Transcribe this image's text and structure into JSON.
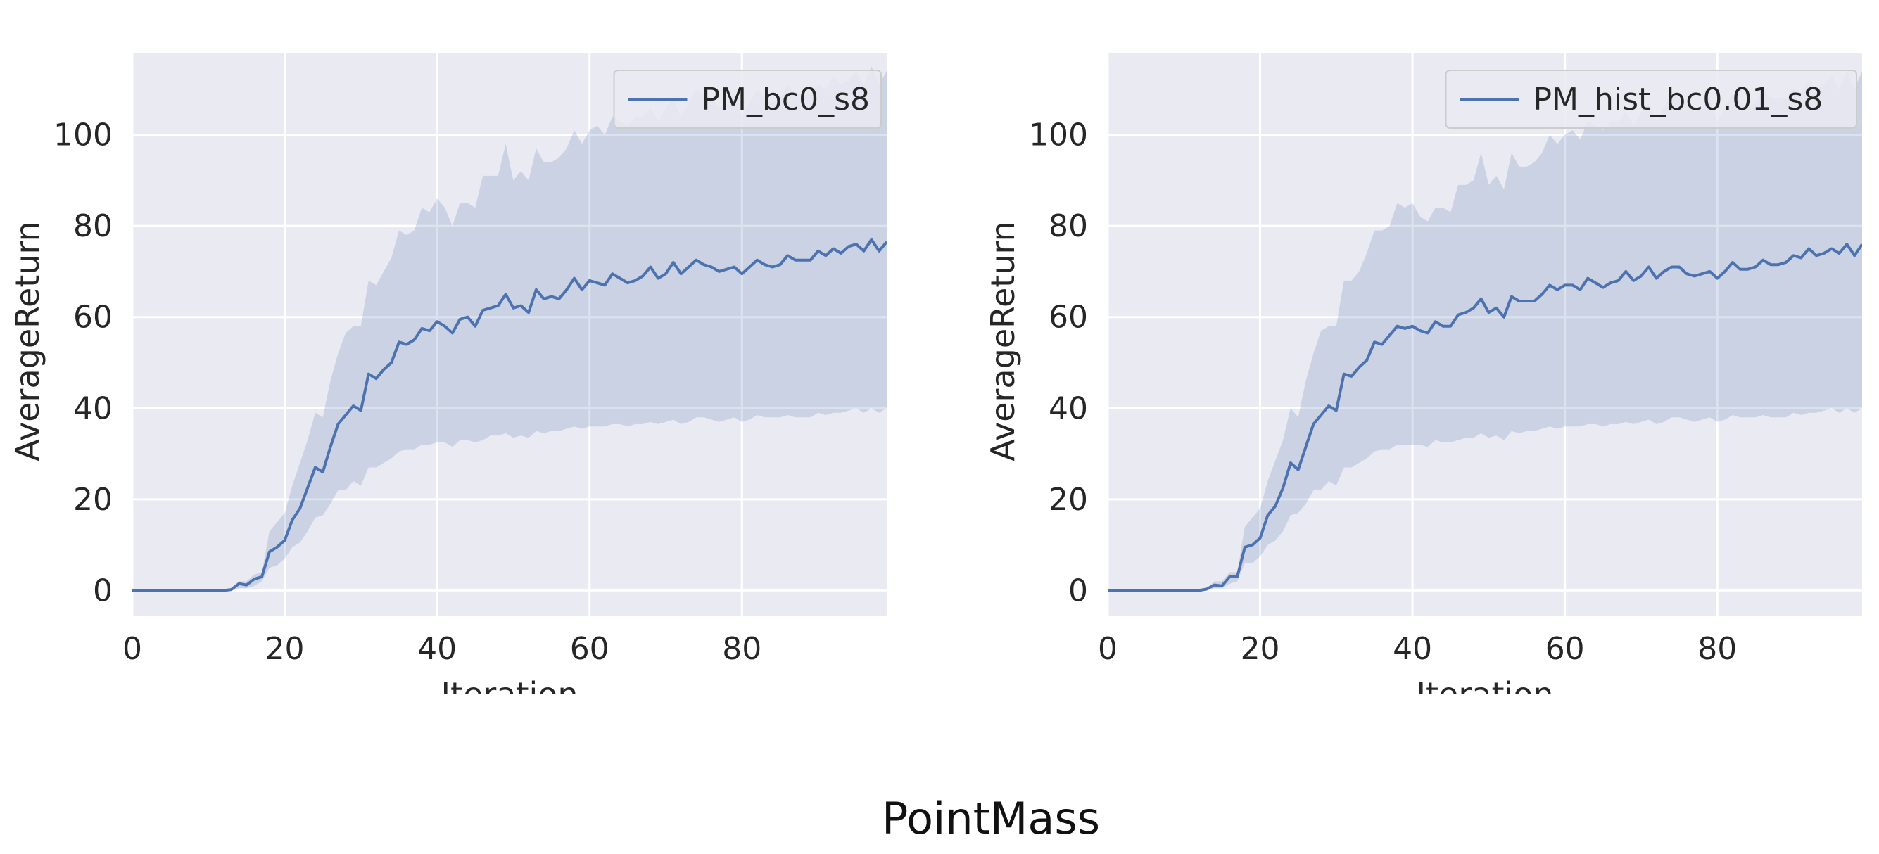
{
  "figure": {
    "suptitle": "PointMass",
    "colors": {
      "background": "#eaeaf2",
      "grid": "#ffffff",
      "line": "#4c72b0",
      "band": "#4c72b0"
    }
  },
  "chart_data": [
    {
      "type": "line",
      "xlabel": "Iteration",
      "ylabel": "AverageReturn",
      "xlim": [
        0,
        99
      ],
      "ylim": [
        -5.5,
        118
      ],
      "xticks": [
        0,
        20,
        40,
        60,
        80
      ],
      "yticks": [
        0,
        20,
        40,
        60,
        80,
        100
      ],
      "grid": true,
      "legend_position": "top-right",
      "series": [
        {
          "name": "PM_bc0_s8",
          "x": [
            0,
            1,
            2,
            3,
            4,
            5,
            6,
            7,
            8,
            9,
            10,
            11,
            12,
            13,
            14,
            15,
            16,
            17,
            18,
            19,
            20,
            21,
            22,
            23,
            24,
            25,
            26,
            27,
            28,
            29,
            30,
            31,
            32,
            33,
            34,
            35,
            36,
            37,
            38,
            39,
            40,
            41,
            42,
            43,
            44,
            45,
            46,
            47,
            48,
            49,
            50,
            51,
            52,
            53,
            54,
            55,
            56,
            57,
            58,
            59,
            60,
            61,
            62,
            63,
            64,
            65,
            66,
            67,
            68,
            69,
            70,
            71,
            72,
            73,
            74,
            75,
            76,
            77,
            78,
            79,
            80,
            81,
            82,
            83,
            84,
            85,
            86,
            87,
            88,
            89,
            90,
            91,
            92,
            93,
            94,
            95,
            96,
            97,
            98,
            99
          ],
          "values": [
            0,
            0,
            0,
            0,
            0,
            0,
            0,
            0,
            0,
            0,
            0,
            0,
            0,
            0.2,
            1.5,
            1.2,
            2.5,
            3,
            8.5,
            9.5,
            11,
            15.5,
            18,
            22.5,
            27,
            26,
            31.5,
            36.5,
            38.5,
            40.5,
            39.5,
            47.5,
            46.5,
            48.5,
            50,
            54.5,
            54,
            55,
            57.5,
            57,
            59,
            58,
            56.5,
            59.5,
            60,
            58,
            61.5,
            62,
            62.5,
            65,
            62,
            62.5,
            61,
            66,
            64,
            64.5,
            64,
            66,
            68.5,
            66,
            68,
            67.5,
            67,
            69.5,
            68.5,
            67.5,
            68,
            69,
            71,
            68.5,
            69.5,
            72,
            69.5,
            71,
            72.5,
            71.5,
            71,
            70,
            70.5,
            71,
            69.5,
            71,
            72.5,
            71.5,
            71,
            71.5,
            73.5,
            72.5,
            72.5,
            72.5,
            74.5,
            73.5,
            75,
            74,
            75.5,
            76,
            74.5,
            77,
            74.5,
            76.5
          ],
          "upper": [
            0,
            0,
            0,
            0,
            0,
            0,
            0,
            0,
            0,
            0,
            0,
            0,
            0,
            0.5,
            2,
            2,
            3.5,
            4,
            13,
            15,
            17,
            23,
            28,
            33,
            39,
            38,
            46,
            52,
            56.5,
            58,
            58,
            68,
            67,
            70,
            73,
            79,
            78,
            79,
            84,
            83,
            86,
            84,
            80,
            85,
            85,
            84,
            91,
            91,
            91,
            98,
            90,
            92,
            90,
            97,
            94,
            94,
            95,
            97,
            101,
            98,
            101,
            102,
            100,
            104,
            103,
            102,
            104,
            104,
            106,
            103,
            106,
            108,
            104,
            107,
            110,
            109,
            108,
            106,
            107,
            109,
            104,
            107,
            110,
            108,
            107,
            108,
            111,
            109,
            109,
            109,
            111,
            110,
            113,
            111,
            112,
            114,
            111,
            115,
            111,
            114
          ],
          "lower": [
            0,
            0,
            0,
            0,
            0,
            0,
            0,
            0,
            0,
            0,
            0,
            0,
            0,
            0,
            0.5,
            0.5,
            1,
            2,
            5,
            5.5,
            7,
            9.5,
            10.5,
            13,
            16,
            16.5,
            19,
            22,
            22,
            24,
            23,
            27,
            27,
            28,
            29,
            30.5,
            31,
            31,
            32,
            32,
            32.5,
            32.5,
            31.5,
            33,
            33,
            32.5,
            33,
            34,
            34,
            34.5,
            33.5,
            34,
            33.5,
            35,
            34.5,
            35,
            35,
            35.5,
            36,
            35.5,
            36,
            36,
            36,
            36.5,
            36.5,
            36,
            36.5,
            36.5,
            37,
            36.5,
            37,
            37.5,
            36.5,
            37,
            38,
            38,
            37.5,
            37,
            37.5,
            38,
            37,
            37.5,
            38.5,
            38,
            38,
            38,
            38.5,
            38,
            38,
            38,
            39,
            38.5,
            39,
            39,
            39.5,
            40,
            39,
            40,
            39,
            40
          ]
        }
      ]
    },
    {
      "type": "line",
      "xlabel": "Iteration",
      "ylabel": "AverageReturn",
      "xlim": [
        0,
        99
      ],
      "ylim": [
        -5.5,
        118
      ],
      "xticks": [
        0,
        20,
        40,
        60,
        80
      ],
      "yticks": [
        0,
        20,
        40,
        60,
        80,
        100
      ],
      "grid": true,
      "legend_position": "top-right",
      "series": [
        {
          "name": "PM_hist_bc0.01_s8",
          "x": [
            0,
            1,
            2,
            3,
            4,
            5,
            6,
            7,
            8,
            9,
            10,
            11,
            12,
            13,
            14,
            15,
            16,
            17,
            18,
            19,
            20,
            21,
            22,
            23,
            24,
            25,
            26,
            27,
            28,
            29,
            30,
            31,
            32,
            33,
            34,
            35,
            36,
            37,
            38,
            39,
            40,
            41,
            42,
            43,
            44,
            45,
            46,
            47,
            48,
            49,
            50,
            51,
            52,
            53,
            54,
            55,
            56,
            57,
            58,
            59,
            60,
            61,
            62,
            63,
            64,
            65,
            66,
            67,
            68,
            69,
            70,
            71,
            72,
            73,
            74,
            75,
            76,
            77,
            78,
            79,
            80,
            81,
            82,
            83,
            84,
            85,
            86,
            87,
            88,
            89,
            90,
            91,
            92,
            93,
            94,
            95,
            96,
            97,
            98,
            99
          ],
          "values": [
            0,
            0,
            0,
            0,
            0,
            0,
            0,
            0,
            0,
            0,
            0,
            0,
            0,
            0.3,
            1.2,
            1,
            3,
            3,
            9.5,
            10,
            11.5,
            16.5,
            18.5,
            22.5,
            28,
            26.5,
            31.5,
            36.5,
            38.5,
            40.5,
            39.5,
            47.5,
            47,
            49,
            50.5,
            54.5,
            54,
            56,
            58,
            57.5,
            58,
            57,
            56.5,
            59,
            58,
            58,
            60.5,
            61,
            62,
            64,
            61,
            62,
            60,
            64.5,
            63.5,
            63.5,
            63.5,
            65,
            67,
            66,
            67,
            67,
            66,
            68.5,
            67.5,
            66.5,
            67.5,
            68,
            70,
            68,
            69,
            71,
            68.5,
            70,
            71,
            71,
            69.5,
            69,
            69.5,
            70,
            68.5,
            70,
            72,
            70.5,
            70.5,
            71,
            72.5,
            71.5,
            71.5,
            72,
            73.5,
            73,
            75,
            73.5,
            74,
            75,
            74,
            76,
            73.5,
            76
          ],
          "upper": [
            0,
            0,
            0,
            0,
            0,
            0,
            0,
            0,
            0,
            0,
            0,
            0,
            0,
            0.5,
            2,
            2,
            4,
            4,
            14,
            16,
            18,
            24,
            28.5,
            33,
            40,
            38,
            46,
            52,
            57,
            58,
            58,
            68,
            68,
            70,
            74,
            79,
            79,
            80,
            85,
            84,
            85,
            82,
            81,
            84,
            84,
            83,
            89,
            89,
            90,
            96,
            89,
            91,
            88,
            96,
            93,
            93,
            94,
            96,
            100,
            98,
            100,
            101,
            99,
            103,
            102,
            101,
            103,
            103,
            105,
            102,
            105,
            107,
            103,
            106,
            109,
            108,
            107,
            105,
            106,
            108,
            103,
            106,
            109,
            107,
            106,
            107,
            110,
            108,
            108,
            108,
            110,
            109,
            112,
            110,
            111,
            113,
            110,
            114,
            110,
            114
          ],
          "lower": [
            0,
            0,
            0,
            0,
            0,
            0,
            0,
            0,
            0,
            0,
            0,
            0,
            0,
            0,
            0.5,
            0.5,
            1.5,
            2,
            6,
            6,
            7.5,
            10,
            11,
            13,
            16.5,
            17,
            19,
            22,
            22,
            24,
            23,
            27,
            27,
            28,
            29,
            30.5,
            31,
            31,
            32,
            32,
            32,
            32,
            31.5,
            33,
            32.5,
            32.5,
            33,
            33.5,
            33.5,
            34.5,
            33.5,
            34,
            33,
            35,
            34.5,
            35,
            35,
            35.5,
            36,
            35.5,
            36,
            36,
            36,
            36.5,
            36.5,
            36,
            36.5,
            36.5,
            37,
            36.5,
            37,
            37.5,
            36.5,
            37,
            38,
            38,
            37.5,
            37,
            37.5,
            38,
            37,
            37.5,
            38.5,
            38,
            38,
            38,
            38.5,
            38,
            38,
            38,
            39,
            38.5,
            39,
            39,
            39.5,
            40,
            39,
            40,
            39,
            40
          ]
        }
      ]
    }
  ]
}
